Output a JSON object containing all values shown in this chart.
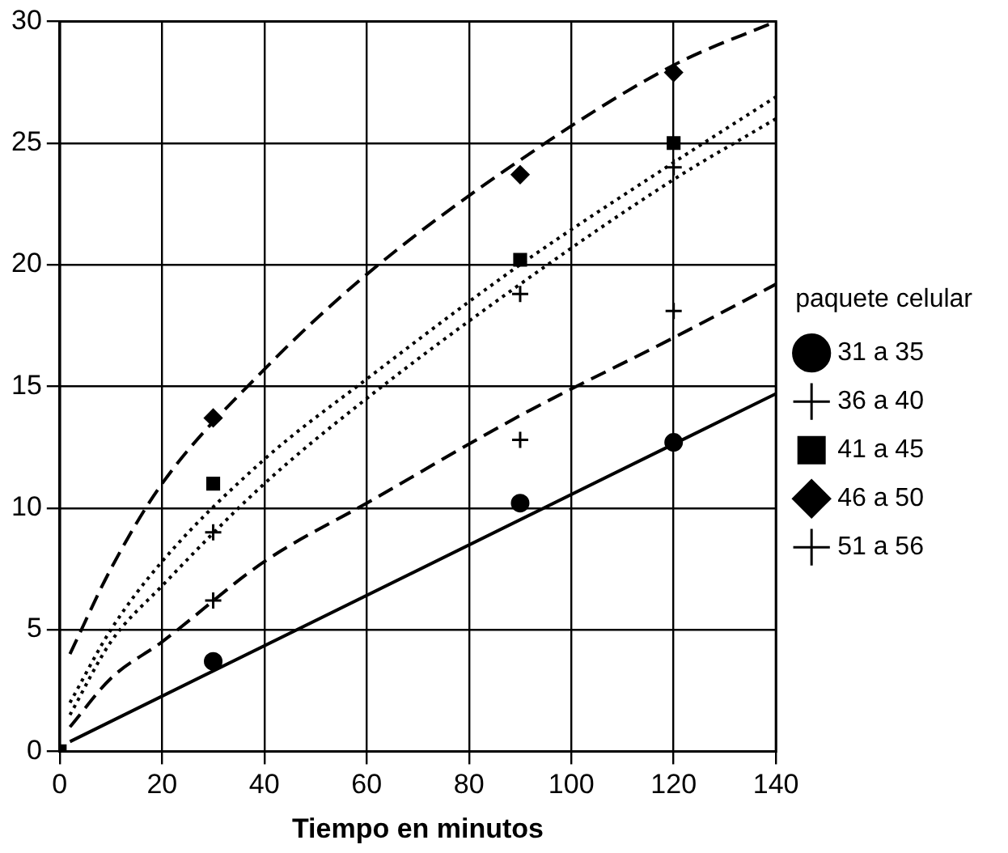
{
  "chart_data": {
    "type": "scatter",
    "xlabel": "Tiempo en minutos",
    "legend_title": "paquete celular",
    "legend": "right",
    "grid": true,
    "xlim": [
      0,
      140
    ],
    "xticks": [
      0,
      20,
      40,
      60,
      80,
      100,
      120,
      140
    ],
    "ylim": [
      0,
      30
    ],
    "yticks": [
      0,
      5,
      10,
      15,
      20,
      25,
      30
    ],
    "series": [
      {
        "name": "31 a 35",
        "marker": "circle",
        "color": "#000000",
        "x": [
          30,
          90,
          120
        ],
        "values": [
          3.7,
          10.2,
          12.7
        ]
      },
      {
        "name": "36 a 40",
        "marker": "cross",
        "color": "#000000",
        "x": [
          30,
          90,
          120
        ],
        "values": [
          6.2,
          12.8,
          18.1
        ]
      },
      {
        "name": "41 a 45",
        "marker": "square",
        "color": "#000000",
        "x": [
          0,
          30,
          90,
          120
        ],
        "values": [
          0,
          11,
          20.2,
          25
        ]
      },
      {
        "name": "46 a 50",
        "marker": "diamond",
        "color": "#000000",
        "x": [
          30,
          90,
          120
        ],
        "values": [
          13.7,
          23.7,
          27.9
        ]
      },
      {
        "name": "51 a 56",
        "marker": "cross",
        "color": "#000000",
        "x": [
          30,
          90,
          120
        ],
        "values": [
          9,
          18.8,
          24
        ]
      },
      {
        "type": "line",
        "line_style": "solid",
        "marker": "none",
        "color": "#000000",
        "x": [
          2,
          140
        ],
        "values": [
          0.4,
          14.7
        ]
      },
      {
        "type": "line",
        "line_style": "dashed",
        "marker": "none",
        "color": "#000000",
        "x": [
          2,
          10,
          20,
          40,
          60,
          90,
          120,
          140
        ],
        "values": [
          1,
          3,
          4.5,
          7.8,
          10.2,
          13.8,
          17,
          19.2
        ]
      },
      {
        "type": "line",
        "line_style": "dotted",
        "marker": "none",
        "color": "#000000",
        "x": [
          2,
          10,
          20,
          40,
          60,
          90,
          120,
          140
        ],
        "values": [
          2,
          5,
          7.8,
          12,
          15.3,
          20,
          24.2,
          26.9
        ]
      },
      {
        "type": "line",
        "line_style": "dashed",
        "marker": "none",
        "color": "#000000",
        "x": [
          2,
          10,
          20,
          40,
          60,
          90,
          120,
          140
        ],
        "values": [
          4,
          7.5,
          11,
          15.7,
          19.6,
          24.3,
          28.2,
          30
        ]
      },
      {
        "type": "line",
        "line_style": "dotted",
        "marker": "none",
        "color": "#000000",
        "x": [
          2,
          10,
          20,
          40,
          60,
          90,
          120,
          140
        ],
        "values": [
          1.5,
          4.5,
          6.8,
          11,
          14.5,
          19.2,
          23.5,
          26
        ]
      }
    ]
  }
}
